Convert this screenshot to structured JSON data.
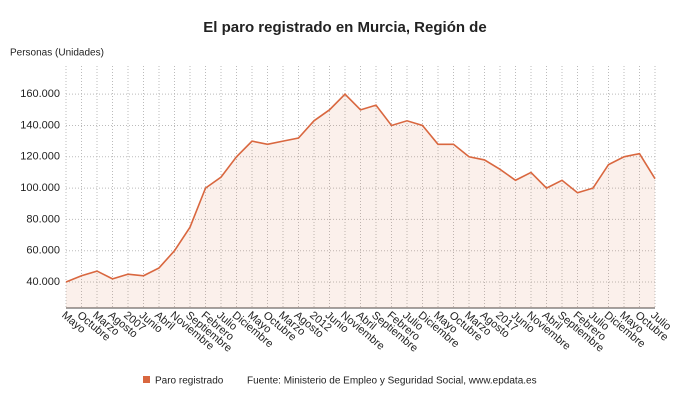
{
  "chart_data": {
    "type": "area",
    "title": "El paro registrado en Murcia, Región de",
    "y_axis_label": "Personas (Unidades)",
    "source": "Fuente: Ministerio de Empleo y Seguridad Social, www.epdata.es",
    "categories": [
      "Mayo",
      "Octubre",
      "Marzo",
      "Agosto",
      "2007",
      "Junio",
      "Abril",
      "Noviembre",
      "Septiembre",
      "Febrero",
      "Julio",
      "Diciembre",
      "Mayo",
      "Octubre",
      "Marzo",
      "Agosto",
      "2012",
      "Junio",
      "Noviembre",
      "Abril",
      "Septiembre",
      "Febrero",
      "Julio",
      "Diciembre",
      "Mayo",
      "Octubre",
      "Marzo",
      "Agosto",
      "2017",
      "Junio",
      "Noviembre",
      "Abril",
      "Septiembre",
      "Febrero",
      "Julio",
      "Diciembre",
      "Mayo",
      "Octubre",
      "Julio"
    ],
    "series": [
      {
        "name": "Paro registrado",
        "color": "#d9673f",
        "values": [
          40000,
          44000,
          47000,
          42000,
          45000,
          44000,
          49000,
          60000,
          75000,
          100000,
          107000,
          120000,
          130000,
          128000,
          130000,
          132000,
          143000,
          150000,
          160000,
          150000,
          153000,
          140000,
          143000,
          140000,
          128000,
          128000,
          120000,
          118000,
          112000,
          105000,
          110000,
          100000,
          105000,
          97000,
          100000,
          115000,
          120000,
          122000,
          106000
        ]
      }
    ],
    "ylim": [
      23400,
      178000
    ],
    "yticks": [
      {
        "value": 40000,
        "label": "40.000"
      },
      {
        "value": 60000,
        "label": "60.000"
      },
      {
        "value": 80000,
        "label": "80.000"
      },
      {
        "value": 100000,
        "label": "100.000"
      },
      {
        "value": 120000,
        "label": "120.000"
      },
      {
        "value": 140000,
        "label": "140.000"
      },
      {
        "value": 160000,
        "label": "160.000"
      }
    ],
    "grid": true
  }
}
